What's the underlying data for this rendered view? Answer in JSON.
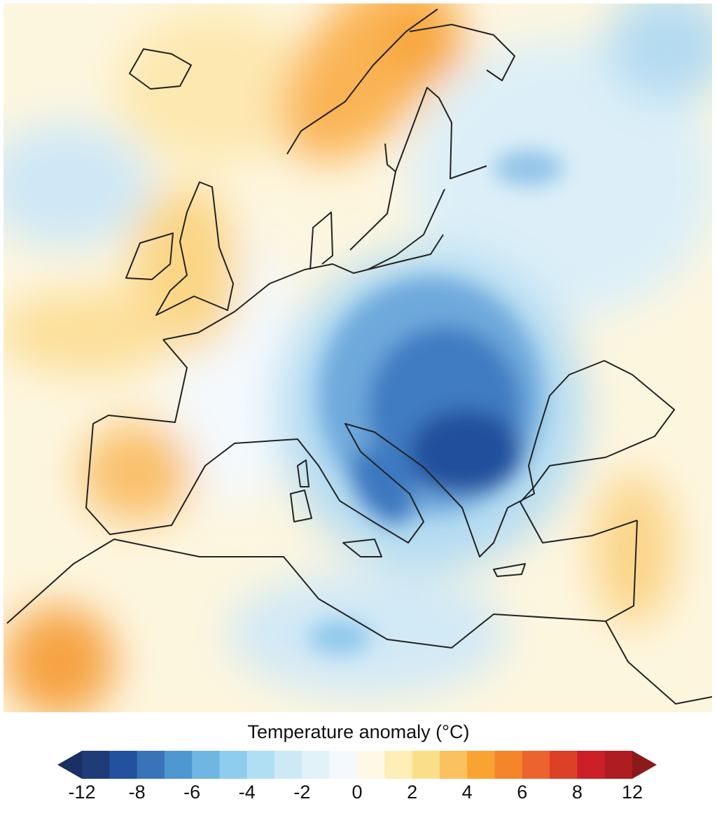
{
  "colorbar": {
    "title": "Temperature anomaly (°C)",
    "tick_labels": [
      "-12",
      "-8",
      "-6",
      "-4",
      "-2",
      "0",
      "2",
      "4",
      "6",
      "8",
      "12"
    ],
    "bins": [
      -12,
      -10,
      -8,
      -7,
      -6,
      -5,
      -4,
      -3,
      -2,
      -1,
      0,
      1,
      2,
      3,
      4,
      5,
      6,
      7,
      8,
      10,
      12
    ],
    "colors": [
      "#1f3b78",
      "#22529d",
      "#3a74b8",
      "#4f97d0",
      "#6fb6e2",
      "#8fcdee",
      "#b0dff4",
      "#cde9f6",
      "#e2f2f9",
      "#f4f9fd",
      "#fdf9e6",
      "#fdefb5",
      "#fbde8a",
      "#fac15e",
      "#f9a333",
      "#f5852b",
      "#ec632e",
      "#dc4027",
      "#cc1f27",
      "#ad1d22"
    ],
    "under_color": "#1a2f62",
    "over_color": "#8b1a1a",
    "extend": "both"
  },
  "map": {
    "region": "Europe and Mediterranean",
    "coolest_area": "Balkans",
    "coolest_anomaly_approx": -10
  }
}
